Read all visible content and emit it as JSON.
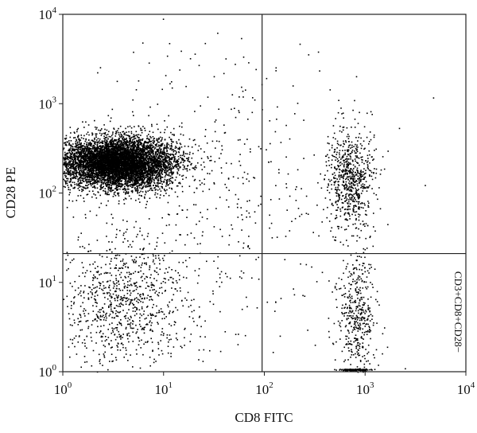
{
  "chart_data": {
    "type": "scatter",
    "title": "",
    "xlabel": "CD8 FITC",
    "ylabel": "CD28 PE",
    "x_scale": "log",
    "y_scale": "log",
    "xlim": [
      1,
      10000
    ],
    "ylim": [
      1,
      10000
    ],
    "x_ticks": [
      {
        "base": "10",
        "exp": "0",
        "value": 1
      },
      {
        "base": "10",
        "exp": "1",
        "value": 10
      },
      {
        "base": "10",
        "exp": "2",
        "value": 100
      },
      {
        "base": "10",
        "exp": "3",
        "value": 1000
      },
      {
        "base": "10",
        "exp": "4",
        "value": 10000
      }
    ],
    "y_ticks": [
      {
        "base": "10",
        "exp": "0",
        "value": 1
      },
      {
        "base": "10",
        "exp": "1",
        "value": 10
      },
      {
        "base": "10",
        "exp": "2",
        "value": 100
      },
      {
        "base": "10",
        "exp": "3",
        "value": 1000
      },
      {
        "base": "10",
        "exp": "4",
        "value": 10000
      }
    ],
    "quadrant_gate": {
      "x": 95,
      "y": 21
    },
    "quadrant_label": "CD3+CD8+CD28−",
    "populations": [
      {
        "description_x_range": [
          1,
          15
        ],
        "description_y_range": [
          80,
          900
        ],
        "center": [
          3.5,
          220
        ],
        "count": 7000,
        "spread_log": [
          0.28,
          0.14
        ],
        "density": "very high"
      },
      {
        "center": [
          700,
          150
        ],
        "count": 700,
        "spread_log": [
          0.12,
          0.28
        ]
      },
      {
        "center": [
          4,
          6
        ],
        "count": 900,
        "spread_log": [
          0.33,
          0.38
        ]
      },
      {
        "center": [
          800,
          4
        ],
        "count": 450,
        "spread_log": [
          0.1,
          0.4
        ]
      },
      {
        "center": [
          30,
          100
        ],
        "count": 500,
        "spread_log": [
          0.8,
          0.8
        ]
      }
    ],
    "point_color": "#000000",
    "grid": false,
    "legend": "none"
  }
}
